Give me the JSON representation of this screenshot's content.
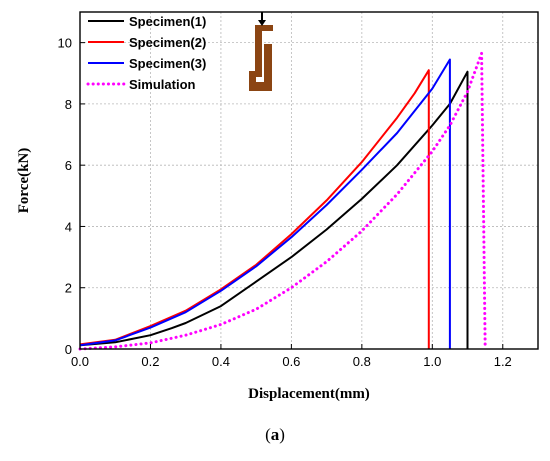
{
  "caption": {
    "open": "(",
    "letter": "a",
    "close": ")"
  },
  "chart_data": {
    "type": "line",
    "xlabel": "Displacement(mm)",
    "ylabel": "Force(kN)",
    "xlim": [
      0.0,
      1.3
    ],
    "ylim": [
      0,
      11
    ],
    "xticks": [
      "0.0",
      "0.2",
      "0.4",
      "0.6",
      "0.8",
      "1.0",
      "1.2"
    ],
    "yticks": [
      "0",
      "2",
      "4",
      "6",
      "8",
      "10"
    ],
    "grid": true,
    "legend_position": "top-left",
    "series": [
      {
        "name": "Specimen(1)",
        "color": "#000000",
        "style": "solid",
        "points": [
          [
            0.0,
            0.12
          ],
          [
            0.1,
            0.22
          ],
          [
            0.2,
            0.45
          ],
          [
            0.26,
            0.68
          ],
          [
            0.3,
            0.85
          ],
          [
            0.4,
            1.4
          ],
          [
            0.5,
            2.2
          ],
          [
            0.6,
            3.0
          ],
          [
            0.7,
            3.9
          ],
          [
            0.8,
            4.9
          ],
          [
            0.9,
            6.0
          ],
          [
            1.0,
            7.3
          ],
          [
            1.05,
            8.0
          ],
          [
            1.1,
            9.05
          ],
          [
            1.1,
            0.0
          ]
        ]
      },
      {
        "name": "Specimen(2)",
        "color": "#ff0000",
        "style": "solid",
        "points": [
          [
            0.0,
            0.15
          ],
          [
            0.1,
            0.3
          ],
          [
            0.2,
            0.75
          ],
          [
            0.3,
            1.25
          ],
          [
            0.4,
            1.95
          ],
          [
            0.5,
            2.75
          ],
          [
            0.6,
            3.75
          ],
          [
            0.7,
            4.85
          ],
          [
            0.8,
            6.1
          ],
          [
            0.9,
            7.55
          ],
          [
            0.95,
            8.35
          ],
          [
            0.99,
            9.1
          ],
          [
            0.99,
            0.0
          ]
        ]
      },
      {
        "name": "Specimen(3)",
        "color": "#0000ff",
        "style": "solid",
        "points": [
          [
            0.0,
            0.12
          ],
          [
            0.1,
            0.28
          ],
          [
            0.2,
            0.7
          ],
          [
            0.3,
            1.2
          ],
          [
            0.4,
            1.9
          ],
          [
            0.5,
            2.7
          ],
          [
            0.6,
            3.65
          ],
          [
            0.7,
            4.7
          ],
          [
            0.8,
            5.85
          ],
          [
            0.9,
            7.05
          ],
          [
            1.0,
            8.5
          ],
          [
            1.05,
            9.45
          ],
          [
            1.05,
            0.0
          ]
        ]
      },
      {
        "name": "Simulation",
        "color": "#ff00ff",
        "style": "dotted",
        "points": [
          [
            0.0,
            0.0
          ],
          [
            0.1,
            0.07
          ],
          [
            0.2,
            0.2
          ],
          [
            0.3,
            0.45
          ],
          [
            0.4,
            0.8
          ],
          [
            0.5,
            1.3
          ],
          [
            0.6,
            2.0
          ],
          [
            0.7,
            2.85
          ],
          [
            0.8,
            3.85
          ],
          [
            0.9,
            5.05
          ],
          [
            1.0,
            6.45
          ],
          [
            1.05,
            7.3
          ],
          [
            1.1,
            8.4
          ],
          [
            1.14,
            9.65
          ],
          [
            1.15,
            0.0
          ]
        ]
      }
    ]
  }
}
